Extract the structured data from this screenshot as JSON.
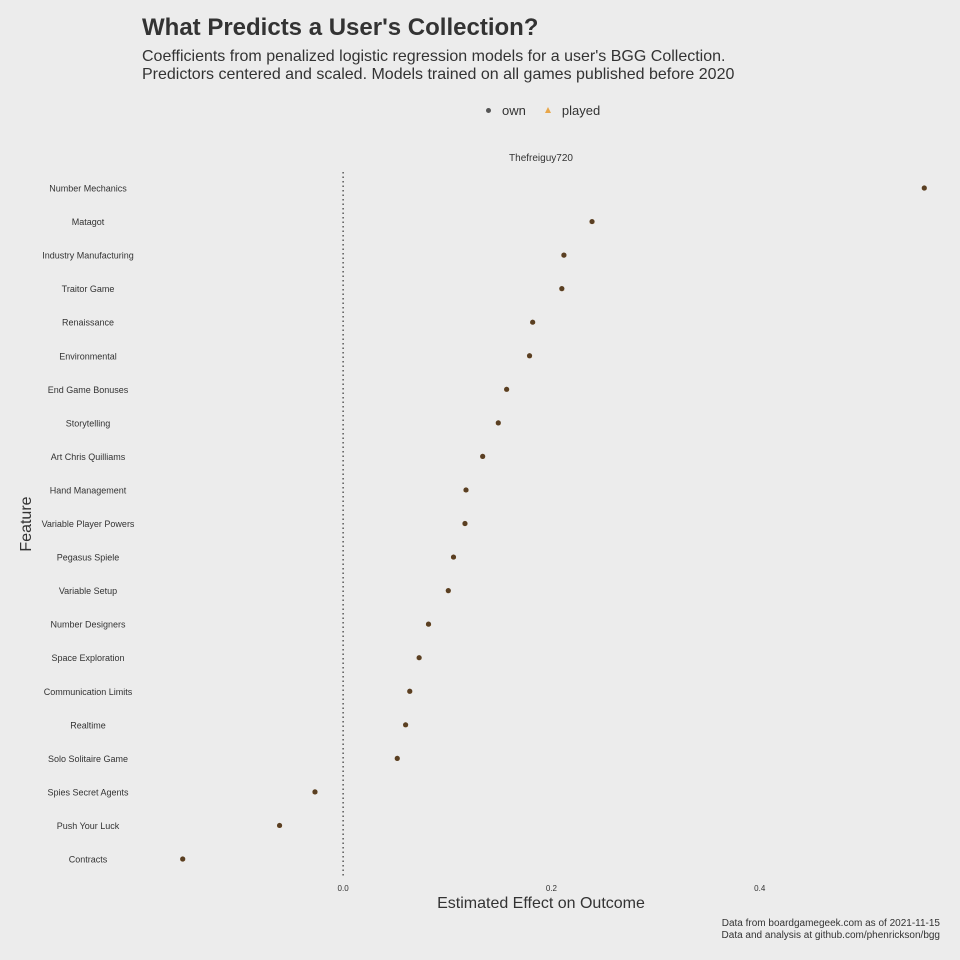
{
  "title": "What Predicts a User's Collection?",
  "subtitle_lines": [
    "Coefficients from penalized logistic regression models for a user's BGG Collection.",
    "Predictors centered and scaled. Models trained on all games published before 2020"
  ],
  "legend": {
    "items": [
      {
        "label": "own",
        "shape": "circle",
        "color": "#555555"
      },
      {
        "label": "played",
        "shape": "triangle",
        "color": "#e8a64a"
      }
    ]
  },
  "caption_lines": [
    "Data from boardgamegeek.com as of 2021-11-15",
    "Data and analysis at github.com/phenrickson/bgg"
  ],
  "chart_data": {
    "type": "scatter",
    "facet": "Thefreiguy720",
    "xlabel": "Estimated Effect on Outcome",
    "ylabel": "Feature",
    "xlim": [
      -0.195,
      0.575
    ],
    "xticks": [
      0.0,
      0.2,
      0.4
    ],
    "xtick_labels": [
      "0.0",
      "0.2",
      "0.4"
    ],
    "reference_line": 0,
    "point_color": "#5a3f22",
    "categories": [
      "Number Mechanics",
      "Matagot",
      "Industry Manufacturing",
      "Traitor Game",
      "Renaissance",
      "Environmental",
      "End Game Bonuses",
      "Storytelling",
      "Art Chris Quilliams",
      "Hand Management",
      "Variable Player Powers",
      "Pegasus Spiele",
      "Variable Setup",
      "Number Designers",
      "Space Exploration",
      "Communication Limits",
      "Realtime",
      "Solo Solitaire Game",
      "Spies Secret Agents",
      "Push Your Luck",
      "Contracts"
    ],
    "series": [
      {
        "name": "own",
        "values": [
          0.558,
          0.239,
          0.212,
          0.21,
          0.182,
          0.179,
          0.157,
          0.149,
          0.134,
          0.118,
          0.117,
          0.106,
          0.101,
          0.082,
          0.073,
          0.064,
          0.06,
          0.052,
          -0.027,
          -0.061,
          -0.154
        ]
      }
    ]
  }
}
